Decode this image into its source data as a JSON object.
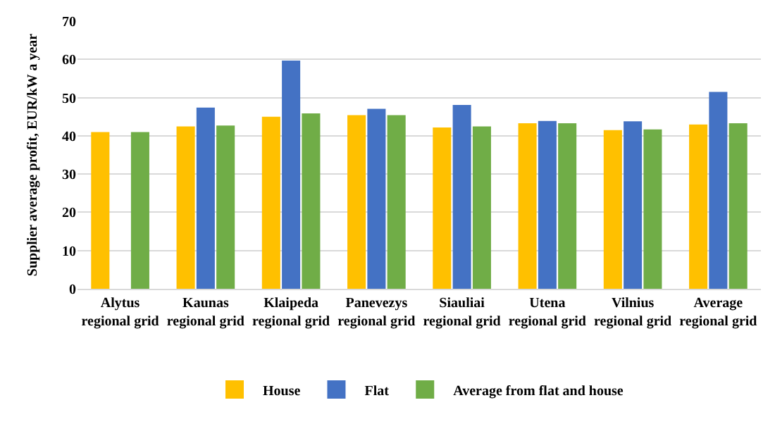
{
  "chart_data": {
    "type": "bar",
    "ylabel": "Supplier average profit, EUR/kW a year",
    "categories": [
      "Alytus regional grid",
      "Kaunas regional grid",
      "Klaipeda regional grid",
      "Panevezys regional grid",
      "Siauliai regional grid",
      "Utena regional grid",
      "Vilnius regional grid",
      "Average regional grid"
    ],
    "series": [
      {
        "name": "House",
        "color": "#ffc000",
        "values": [
          40.8,
          42.3,
          44.8,
          45.2,
          42.0,
          43.1,
          41.3,
          42.8
        ]
      },
      {
        "name": "Flat",
        "color": "#4472c4",
        "values": [
          null,
          47.2,
          59.5,
          46.9,
          47.9,
          43.7,
          43.6,
          51.3
        ]
      },
      {
        "name": "Average from flat and house",
        "color": "#70ad47",
        "values": [
          40.8,
          42.5,
          45.7,
          45.2,
          42.3,
          43.1,
          41.5,
          43.1
        ]
      }
    ],
    "ylim": [
      0,
      70
    ],
    "yticks": [
      0,
      10,
      20,
      30,
      40,
      50,
      60,
      70
    ],
    "grid": "y",
    "legend": "bottom"
  }
}
